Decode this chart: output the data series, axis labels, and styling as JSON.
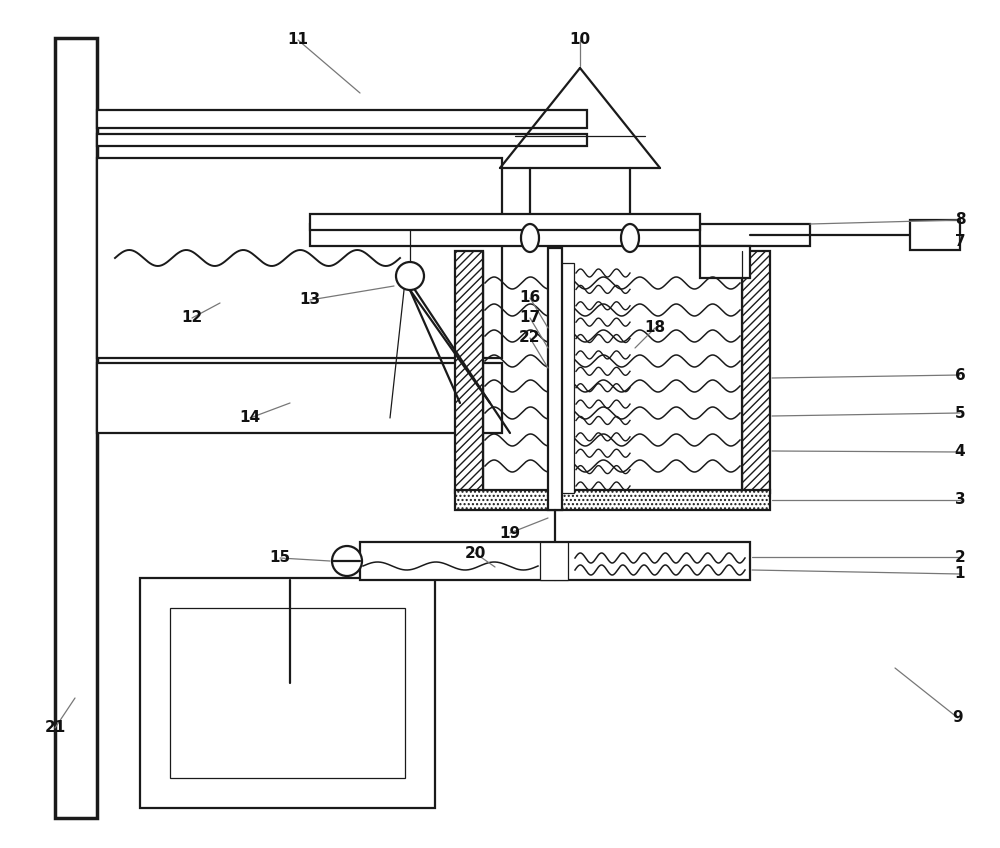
{
  "bg": "#ffffff",
  "lc": "#1a1a1a",
  "gray": "#777777",
  "lw1": 0.9,
  "lw2": 1.6,
  "lw3": 2.5,
  "fs": 11
}
